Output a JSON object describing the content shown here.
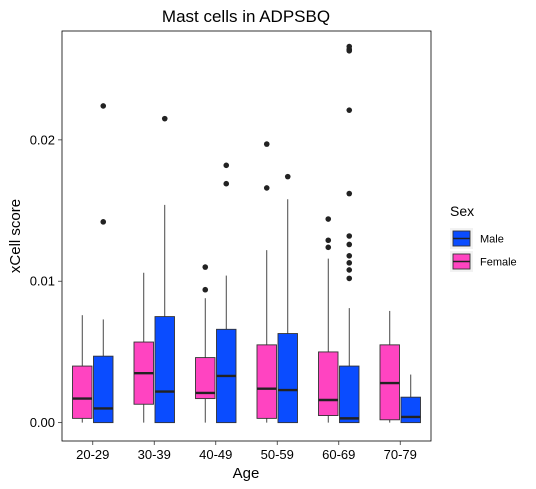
{
  "chart_data": {
    "type": "boxplot",
    "title": "Mast cells in ADPSBQ",
    "xlabel": "Age",
    "ylabel": "xCell score",
    "ylim": [
      -0.0013,
      0.0277
    ],
    "y_ticks": [
      0.0,
      0.01,
      0.02
    ],
    "y_tick_labels": [
      "0.00",
      "0.01",
      "0.02"
    ],
    "categories": [
      "20-29",
      "30-39",
      "40-49",
      "50-59",
      "60-69",
      "70-79"
    ],
    "grid": false,
    "legend": {
      "title": "Sex",
      "position": "right",
      "entries": [
        "Male",
        "Female"
      ]
    },
    "series": [
      {
        "name": "Female",
        "color": "#ff44c1",
        "boxes": [
          {
            "whisker_low": 0.0,
            "q1": 0.0003,
            "median": 0.0017,
            "q3": 0.004,
            "whisker_high": 0.0076,
            "outliers": []
          },
          {
            "whisker_low": 0.0,
            "q1": 0.0013,
            "median": 0.0035,
            "q3": 0.0057,
            "whisker_high": 0.0106,
            "outliers": []
          },
          {
            "whisker_low": 0.0,
            "q1": 0.0017,
            "median": 0.0021,
            "q3": 0.0046,
            "whisker_high": 0.0088,
            "outliers": [
              0.0094,
              0.011
            ]
          },
          {
            "whisker_low": 0.0,
            "q1": 0.0003,
            "median": 0.0024,
            "q3": 0.0055,
            "whisker_high": 0.0122,
            "outliers": [
              0.0166,
              0.0197
            ]
          },
          {
            "whisker_low": 0.0,
            "q1": 0.0005,
            "median": 0.0016,
            "q3": 0.005,
            "whisker_high": 0.0116,
            "outliers": [
              0.0124,
              0.0129,
              0.0144
            ]
          },
          {
            "whisker_low": 0.0,
            "q1": 0.0002,
            "median": 0.0028,
            "q3": 0.0055,
            "whisker_high": 0.0079,
            "outliers": []
          }
        ]
      },
      {
        "name": "Male",
        "color": "#0a4cff",
        "boxes": [
          {
            "whisker_low": 0.0,
            "q1": 0.0,
            "median": 0.001,
            "q3": 0.0047,
            "whisker_high": 0.0073,
            "outliers": [
              0.0142,
              0.0224
            ]
          },
          {
            "whisker_low": 0.0,
            "q1": 0.0,
            "median": 0.0022,
            "q3": 0.0075,
            "whisker_high": 0.0154,
            "outliers": [
              0.0215
            ]
          },
          {
            "whisker_low": 0.0,
            "q1": 0.0,
            "median": 0.0033,
            "q3": 0.0066,
            "whisker_high": 0.0104,
            "outliers": [
              0.0169,
              0.0182
            ]
          },
          {
            "whisker_low": 0.0,
            "q1": 0.0,
            "median": 0.0023,
            "q3": 0.0063,
            "whisker_high": 0.0158,
            "outliers": [
              0.0174
            ]
          },
          {
            "whisker_low": 0.0,
            "q1": 0.0,
            "median": 0.0003,
            "q3": 0.004,
            "whisker_high": 0.0081,
            "outliers": [
              0.0102,
              0.0108,
              0.0113,
              0.0118,
              0.0126,
              0.0132,
              0.0162,
              0.0221,
              0.0263,
              0.0264,
              0.0266
            ]
          },
          {
            "whisker_low": 0.0,
            "q1": 0.0,
            "median": 0.0004,
            "q3": 0.0018,
            "whisker_high": 0.0034,
            "outliers": []
          }
        ]
      }
    ]
  }
}
